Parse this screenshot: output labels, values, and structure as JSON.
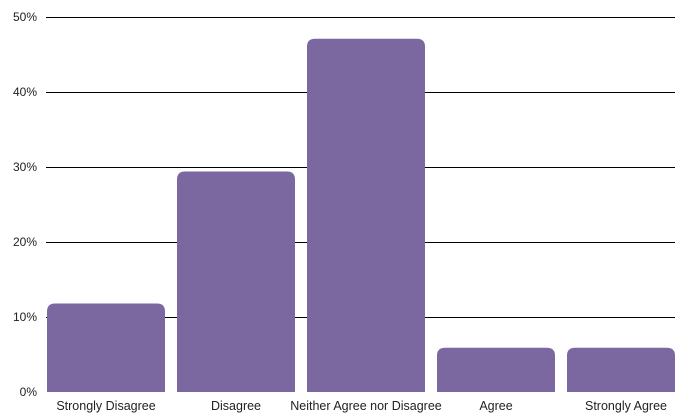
{
  "chart_data": {
    "type": "bar",
    "categories": [
      "Strongly Disagree",
      "Disagree",
      "Neither Agree nor Disagree",
      "Agree",
      "Strongly Agree"
    ],
    "values": [
      11.8,
      29.4,
      47.1,
      5.9,
      5.9
    ],
    "value_unit": "%",
    "ylim": [
      0,
      50
    ],
    "yticks": [
      "0%",
      "10%",
      "20%",
      "30%",
      "40%",
      "50%"
    ],
    "title": "",
    "xlabel": "",
    "ylabel": "",
    "grid": true,
    "legend": "none",
    "colors": {
      "bar": "#7b68a0",
      "grid": "#000000",
      "text": "#222222"
    }
  }
}
